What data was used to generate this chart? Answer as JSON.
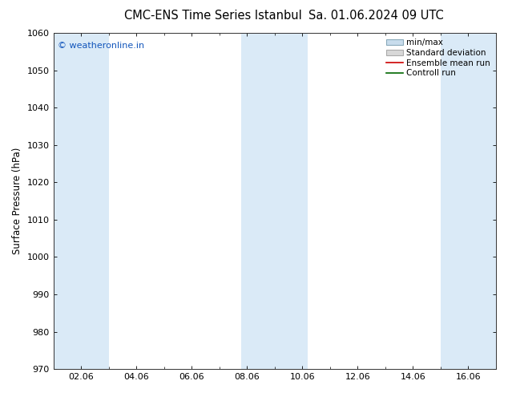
{
  "title": "CMC-ENS Time Series Istanbul",
  "title2": "Sa. 01.06.2024 09 UTC",
  "ylabel": "Surface Pressure (hPa)",
  "ylim": [
    970,
    1060
  ],
  "yticks": [
    970,
    980,
    990,
    1000,
    1010,
    1020,
    1030,
    1040,
    1050,
    1060
  ],
  "xtick_labels": [
    "02.06",
    "04.06",
    "06.06",
    "08.06",
    "10.06",
    "12.06",
    "14.06",
    "16.06"
  ],
  "xtick_positions": [
    2,
    4,
    6,
    8,
    10,
    12,
    14,
    16
  ],
  "xlim": [
    1,
    17
  ],
  "shaded_bands": [
    {
      "x_start": 1.0,
      "x_end": 3.0,
      "color": "#daeaf7"
    },
    {
      "x_start": 7.8,
      "x_end": 10.2,
      "color": "#daeaf7"
    },
    {
      "x_start": 15.0,
      "x_end": 17.0,
      "color": "#daeaf7"
    }
  ],
  "watermark_text": "© weatheronline.in",
  "watermark_color": "#1155bb",
  "legend_entries": [
    {
      "label": "min/max",
      "type": "patch",
      "facecolor": "#c8dcec",
      "edgecolor": "#8aaabb"
    },
    {
      "label": "Standard deviation",
      "type": "patch",
      "facecolor": "#d8d8d8",
      "edgecolor": "#aaaaaa"
    },
    {
      "label": "Ensemble mean run",
      "type": "line",
      "color": "#cc0000",
      "lw": 1.2
    },
    {
      "label": "Controll run",
      "type": "line",
      "color": "#006600",
      "lw": 1.2
    }
  ],
  "background_color": "#ffffff",
  "spine_color": "#333333",
  "title_fontsize": 10.5,
  "ylabel_fontsize": 8.5,
  "tick_fontsize": 8,
  "watermark_fontsize": 8,
  "legend_fontsize": 7.5
}
